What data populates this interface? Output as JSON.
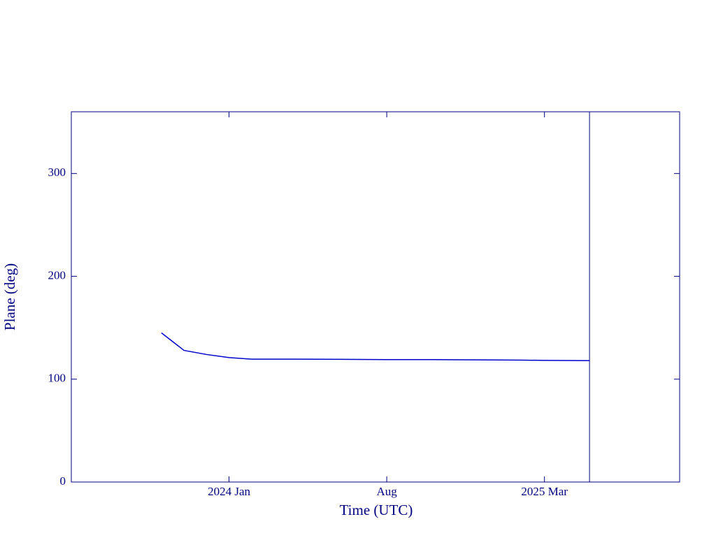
{
  "chart_data": {
    "type": "line",
    "xlabel": "Time (UTC)",
    "ylabel": "Plane (deg)",
    "x": [
      "2023-10",
      "2023-11",
      "2023-12",
      "2024-01",
      "2024-02",
      "2024-04",
      "2024-06",
      "2024-08",
      "2024-10",
      "2024-12",
      "2025-02",
      "2025-03",
      "2025-05"
    ],
    "series": [
      {
        "name": "Plane",
        "color": "#0000cc",
        "values": [
          145,
          128,
          124,
          121,
          119.5,
          119.5,
          119.3,
          119,
          119,
          118.8,
          118.5,
          118.3,
          118
        ]
      }
    ],
    "xlim": [
      "2023-06",
      "2025-09"
    ],
    "xticks": [
      {
        "value": "2024-01",
        "label": "2024 Jan"
      },
      {
        "value": "2024-08",
        "label": "Aug"
      },
      {
        "value": "2025-03",
        "label": "2025 Mar"
      }
    ],
    "ylim": [
      0,
      360
    ],
    "yticks": [
      0,
      100,
      200,
      300
    ],
    "marker_x": "2025-05",
    "axis_color": "#000080"
  }
}
